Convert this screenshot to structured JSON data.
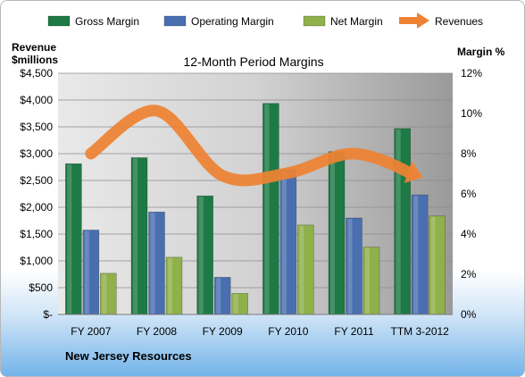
{
  "chart_data": {
    "type": "bar",
    "title": "12-Month Period Margins",
    "company": "New Jersey Resources",
    "left_axis_label": [
      "Revenue",
      "$millions"
    ],
    "right_axis_label": "Margin %",
    "categories": [
      "FY 2007",
      "FY 2008",
      "FY 2009",
      "FY 2010",
      "FY 2011",
      "TTM 3-2012"
    ],
    "left_ticks": [
      "$-",
      "$500",
      "$1,000",
      "$1,500",
      "$2,000",
      "$2,500",
      "$3,000",
      "$3,500",
      "$4,000",
      "$4,500"
    ],
    "right_ticks": [
      "0%",
      "2%",
      "4%",
      "6%",
      "8%",
      "10%",
      "12%"
    ],
    "left_ylim": [
      0,
      4500
    ],
    "right_ylim": [
      0,
      12
    ],
    "grid": true,
    "legend_position": "top",
    "series": [
      {
        "name": "Gross Margin",
        "kind": "bar",
        "axis": "right",
        "color": "#1e7a45",
        "values": [
          7.5,
          7.8,
          5.9,
          10.5,
          8.1,
          9.25
        ]
      },
      {
        "name": "Operating Margin",
        "kind": "bar",
        "axis": "right",
        "color": "#4a6fb0",
        "values": [
          4.2,
          5.1,
          1.85,
          7.2,
          4.8,
          5.95
        ]
      },
      {
        "name": "Net Margin",
        "kind": "bar",
        "axis": "right",
        "color": "#8fb04a",
        "values": [
          2.05,
          2.85,
          1.05,
          4.45,
          3.35,
          4.9
        ]
      },
      {
        "name": "Revenues",
        "kind": "line",
        "axis": "left",
        "color": "#ee8233",
        "values": [
          3000,
          3800,
          2590,
          2640,
          3000,
          2580
        ]
      }
    ]
  }
}
